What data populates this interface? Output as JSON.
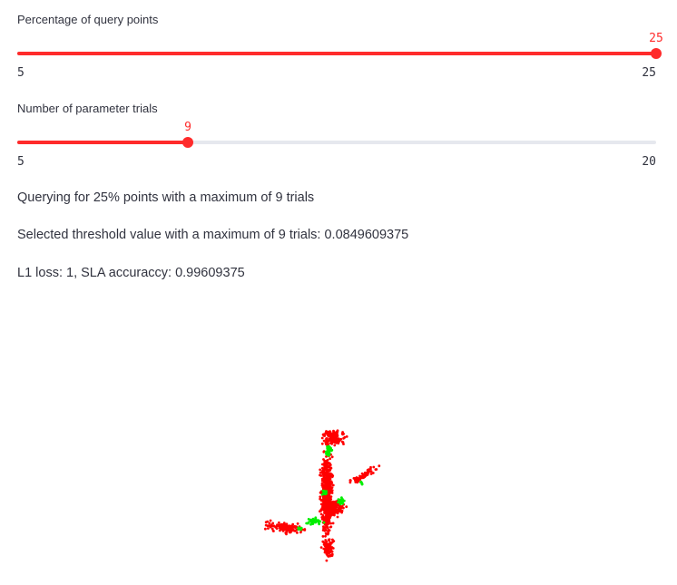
{
  "sliders": {
    "query_pct": {
      "label": "Percentage of query points",
      "value": "25",
      "min": "5",
      "max": "25",
      "fraction": 1.0
    },
    "trials": {
      "label": "Number of parameter trials",
      "value": "9",
      "min": "5",
      "max": "20",
      "fraction": 0.2667
    }
  },
  "output": {
    "query_line": "Querying for 25% points with a maximum of 9 trials",
    "threshold_line": "Selected threshold value with a maximum of 9 trials: 0.0849609375",
    "loss_line": "L1 loss: 1, SLA accuraccy: 0.99609375"
  },
  "point_cloud": {
    "colors": {
      "base": "#ff0000",
      "selected": "#00ee00"
    }
  }
}
